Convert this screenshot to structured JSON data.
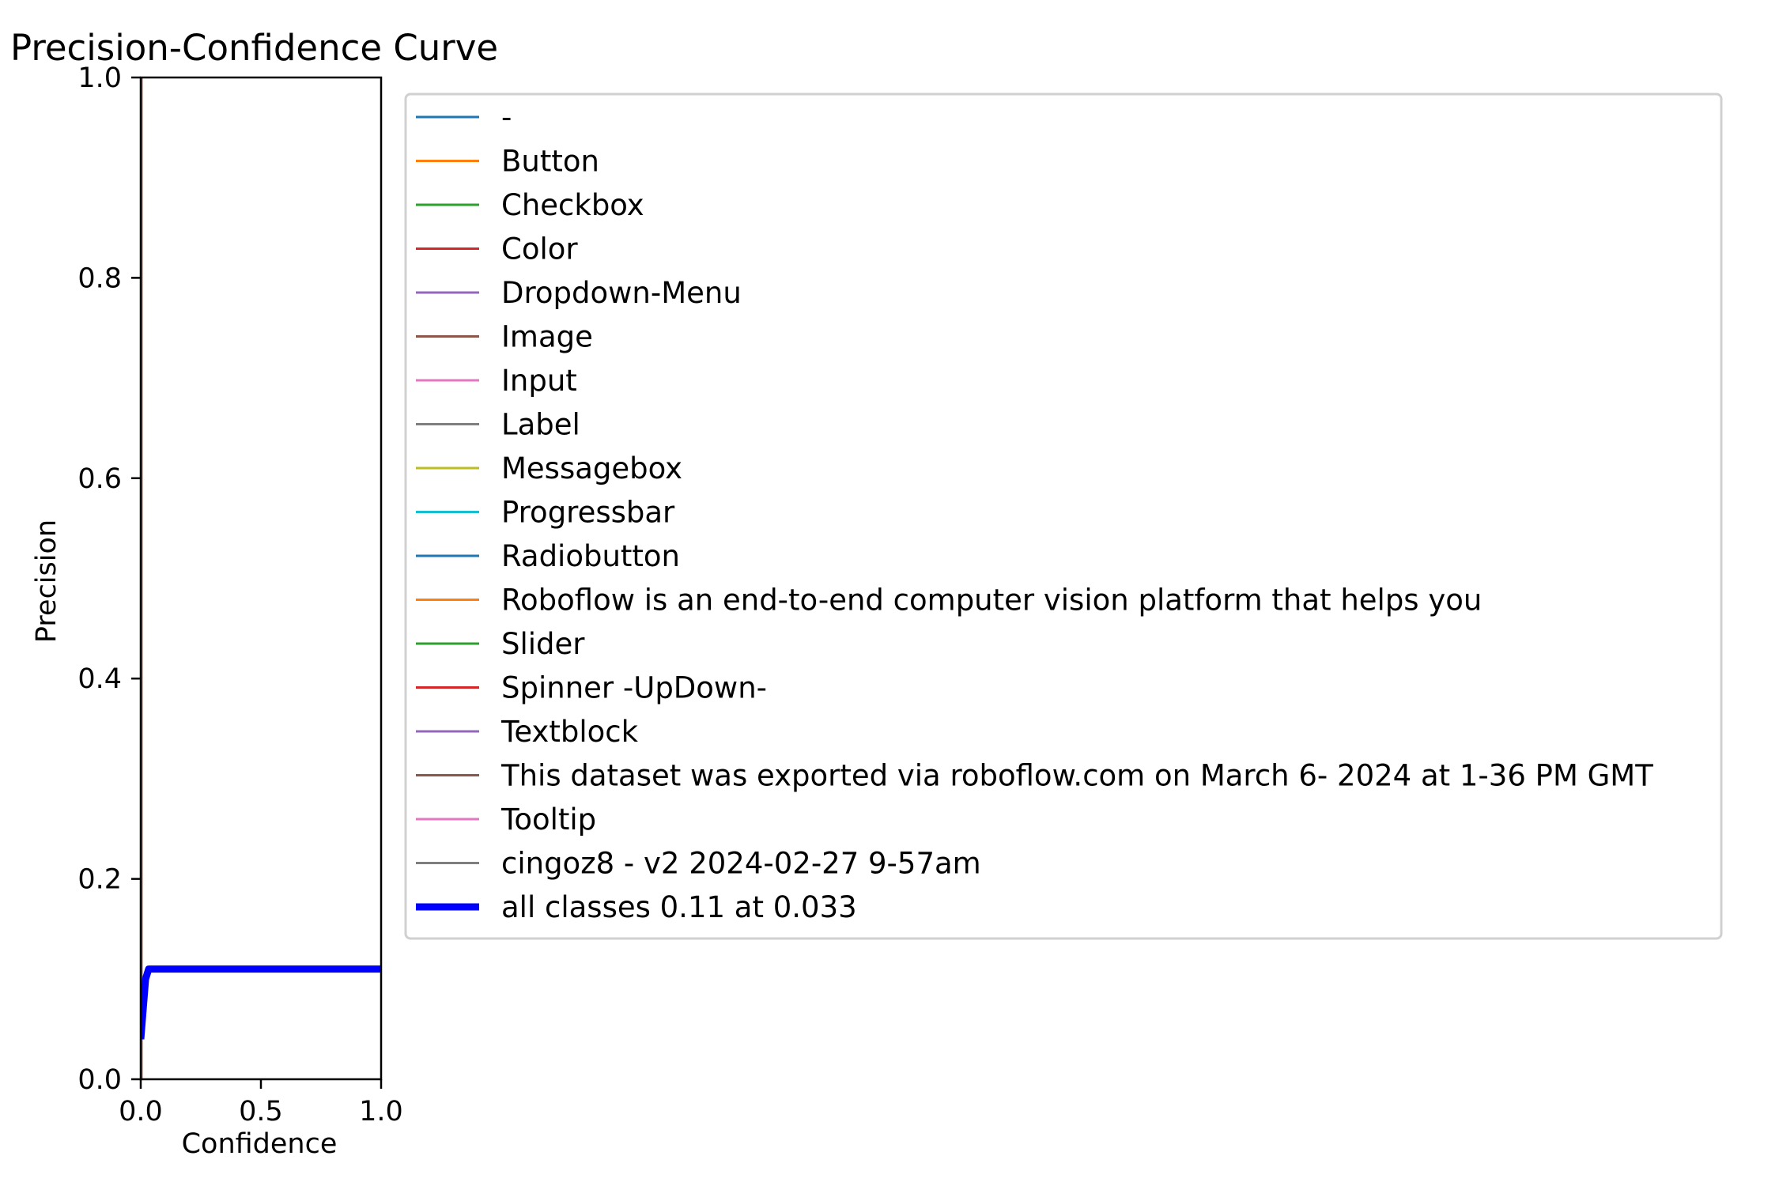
{
  "chart_data": {
    "type": "line",
    "title": "Precision-Confidence Curve",
    "xlabel": "Confidence",
    "ylabel": "Precision",
    "xlim": [
      0,
      1
    ],
    "ylim": [
      0,
      1
    ],
    "xticks": [
      "0.0",
      "0.5",
      "1.0"
    ],
    "yticks": [
      "0.0",
      "0.2",
      "0.4",
      "0.6",
      "0.8",
      "1.0"
    ],
    "grid": false,
    "legend_position": "right",
    "series": [
      {
        "name": "-",
        "color": "#1f77b4",
        "points": [
          [
            0,
            1
          ],
          [
            0,
            0
          ]
        ]
      },
      {
        "name": "Button",
        "color": "#ff7f0e",
        "points": [
          [
            0,
            1
          ],
          [
            0,
            0
          ]
        ]
      },
      {
        "name": "Checkbox",
        "color": "#2ca02c",
        "points": [
          [
            0,
            1
          ],
          [
            0,
            0
          ]
        ]
      },
      {
        "name": "Color",
        "color": "#d62728",
        "points": [
          [
            0.002,
            1
          ],
          [
            0.002,
            0
          ]
        ]
      },
      {
        "name": "Dropdown-Menu",
        "color": "#9467bd",
        "points": [
          [
            0,
            1
          ],
          [
            0,
            0
          ]
        ]
      },
      {
        "name": "Image",
        "color": "#8c564b",
        "points": [
          [
            0.003,
            1
          ],
          [
            0.003,
            0
          ]
        ]
      },
      {
        "name": "Input",
        "color": "#e377c2",
        "points": [
          [
            0,
            1
          ],
          [
            0,
            0
          ]
        ]
      },
      {
        "name": "Label",
        "color": "#7f7f7f",
        "points": [
          [
            0,
            1
          ],
          [
            0,
            0
          ]
        ]
      },
      {
        "name": "Messagebox",
        "color": "#bcbd22",
        "points": [
          [
            0,
            1
          ],
          [
            0,
            0
          ]
        ]
      },
      {
        "name": "Progressbar",
        "color": "#17becf",
        "points": [
          [
            0,
            1
          ],
          [
            0,
            0
          ]
        ]
      },
      {
        "name": "Radiobutton",
        "color": "#1f77b4",
        "points": [
          [
            0,
            1
          ],
          [
            0,
            0
          ]
        ]
      },
      {
        "name": "Roboflow is an end-to-end computer vision platform that helps you",
        "color": "#ff7f0e",
        "points": [
          [
            0,
            1
          ],
          [
            0,
            0
          ]
        ]
      },
      {
        "name": "Slider",
        "color": "#2ca02c",
        "points": [
          [
            0,
            1
          ],
          [
            0,
            0
          ]
        ]
      },
      {
        "name": "Spinner -UpDown-",
        "color": "#d62728",
        "points": [
          [
            0,
            1
          ],
          [
            0,
            0
          ]
        ]
      },
      {
        "name": "Textblock",
        "color": "#9467bd",
        "points": [
          [
            0,
            1
          ],
          [
            0,
            0
          ]
        ]
      },
      {
        "name": "This dataset was exported via roboflow.com on March 6- 2024 at 1-36 PM GMT",
        "color": "#8c564b",
        "points": [
          [
            0,
            1
          ],
          [
            0,
            0
          ]
        ]
      },
      {
        "name": "Tooltip",
        "color": "#e377c2",
        "points": [
          [
            0,
            1
          ],
          [
            0,
            0
          ]
        ]
      },
      {
        "name": "cingoz8 - v2 2024-02-27 9-57am",
        "color": "#7f7f7f",
        "points": [
          [
            0,
            1
          ],
          [
            0,
            0
          ]
        ]
      },
      {
        "name": "all classes 0.11 at 0.033",
        "color": "#0000ff",
        "thick": true,
        "points": [
          [
            0,
            0.04
          ],
          [
            0.01,
            0.07
          ],
          [
            0.02,
            0.1
          ],
          [
            0.033,
            0.11
          ],
          [
            0.1,
            0.11
          ],
          [
            0.5,
            0.11
          ],
          [
            1.0,
            0.11
          ]
        ]
      }
    ]
  }
}
